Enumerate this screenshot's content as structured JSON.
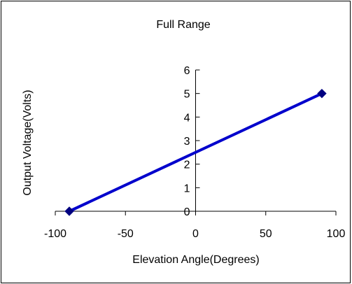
{
  "chart_data": {
    "type": "line",
    "title": "Full Range",
    "xlabel": "Elevation Angle(Degrees)",
    "ylabel": "Output Voltage(Volts)",
    "xlim": [
      -100,
      100
    ],
    "ylim": [
      0,
      6
    ],
    "x_ticks": [
      -100,
      -50,
      0,
      50,
      100
    ],
    "y_ticks": [
      0,
      1,
      2,
      3,
      4,
      5,
      6
    ],
    "grid": false,
    "legend": "none",
    "series": [
      {
        "color": "#0000cc",
        "marker": "diamond",
        "points": [
          {
            "x": -90,
            "y": 0
          },
          {
            "x": 90,
            "y": 5
          }
        ]
      }
    ]
  }
}
